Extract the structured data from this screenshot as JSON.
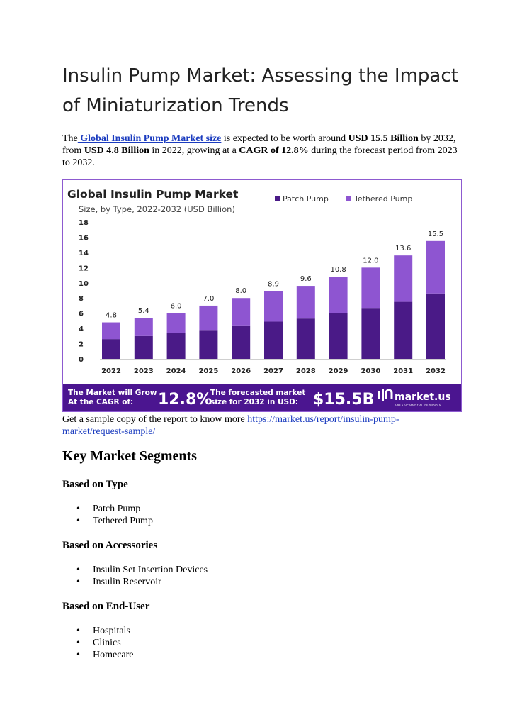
{
  "article": {
    "title": "Insulin Pump Market: Assessing the Impact of Miniaturization Trends",
    "intro": {
      "t1": "The",
      "link": " Global Insulin Pump Market size",
      "t2": " is expected to be worth around ",
      "b1": "USD 15.5 Billion",
      "t3": " by 2032, from ",
      "b2": "USD 4.8 Billion",
      "t4": " in 2022, growing at a ",
      "b3": "CAGR of 12.8%",
      "t5": " during the forecast period from 2023 to 2032."
    },
    "sample": {
      "text": "Get a sample copy of the report to know more ",
      "url": "https://market.us/report/insulin-pump-market/request-sample/ "
    },
    "segments_heading": "Key Market Segments",
    "segments": [
      {
        "heading": "Based on Type",
        "items": [
          "Patch Pump",
          "Tethered Pump"
        ]
      },
      {
        "heading": "Based on Accessories",
        "items": [
          "Insulin Set Insertion Devices",
          "Insulin Reservoir"
        ]
      },
      {
        "heading": "Based on End-User",
        "items": [
          "Hospitals",
          "Clinics",
          "Homecare"
        ]
      }
    ]
  },
  "colors": {
    "patch": "#4a1a87",
    "tethered": "#8e55d1",
    "banner": "#4b1590",
    "title_text": "#222222"
  },
  "chart_data": {
    "type": "bar",
    "stacked": true,
    "title": "Global Insulin Pump Market",
    "subtitle": "Size, by Type, 2022-2032 (USD Billion)",
    "categories": [
      "2022",
      "2023",
      "2024",
      "2025",
      "2026",
      "2027",
      "2028",
      "2029",
      "2030",
      "2031",
      "2032"
    ],
    "series": [
      {
        "name": "Patch Pump",
        "values": [
          2.6,
          3.0,
          3.4,
          3.8,
          4.4,
          4.9,
          5.3,
          6.0,
          6.7,
          7.5,
          8.6
        ]
      },
      {
        "name": "Tethered Pump",
        "values": [
          2.2,
          2.4,
          2.6,
          3.2,
          3.6,
          4.0,
          4.3,
          4.8,
          5.3,
          6.1,
          6.9
        ]
      }
    ],
    "totals": [
      "4.8",
      "5.4",
      "6.0",
      "7.0",
      "8.0",
      "8.9",
      "9.6",
      "10.8",
      "12.0",
      "13.6",
      "15.5"
    ],
    "yticks": [
      "0",
      "2",
      "4",
      "6",
      "8",
      "10",
      "12",
      "14",
      "16",
      "18"
    ],
    "ylim": [
      0,
      18
    ],
    "legend_position": "top-right",
    "banner": {
      "cagr_label": "The Market will Grow At the CAGR of:",
      "cagr_value": "12.8%",
      "forecast_label": "The forecasted market size for 2032 in USD:",
      "forecast_value": "$15.5B",
      "brand": "market.us",
      "brand_tagline": "ONE STOP SHOP FOR THE REPORTS"
    }
  }
}
